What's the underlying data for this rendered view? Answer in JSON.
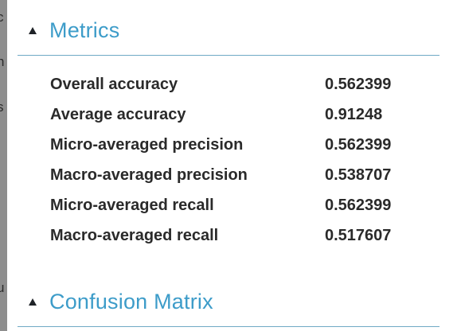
{
  "metrics_section": {
    "title": "Metrics",
    "rows": [
      {
        "name": "Overall accuracy",
        "value": "0.562399"
      },
      {
        "name": "Average accuracy",
        "value": "0.91248"
      },
      {
        "name": "Micro-averaged precision",
        "value": "0.562399"
      },
      {
        "name": "Macro-averaged precision",
        "value": "0.538707"
      },
      {
        "name": "Micro-averaged recall",
        "value": "0.562399"
      },
      {
        "name": "Macro-averaged recall",
        "value": "0.517607"
      }
    ]
  },
  "confusion_section": {
    "title": "Confusion Matrix"
  },
  "left_fragments": [
    "c",
    "n",
    "s",
    "u"
  ],
  "colors": {
    "section_title": "#3d9cc9",
    "rule": "#6fa9c5",
    "text": "#2a2a2a",
    "left_strip": "#8e8e8e"
  }
}
